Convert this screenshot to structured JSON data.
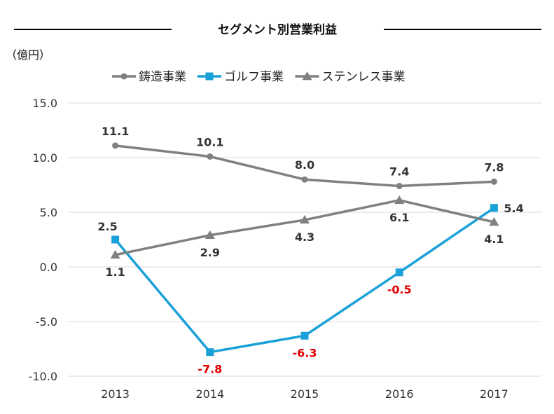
{
  "chart_data": {
    "type": "line",
    "title": "セグメント別営業利益",
    "unit_label": "（億円）",
    "xlabel": "",
    "ylabel": "",
    "ylim": [
      -10,
      15
    ],
    "y_ticks": [
      "15.0",
      "10.0",
      "5.0",
      "0.0",
      "-5.0",
      "-10.0"
    ],
    "y_tick_values": [
      15,
      10,
      5,
      0,
      -5,
      -10
    ],
    "categories": [
      "2013",
      "2014",
      "2015",
      "2016",
      "2017"
    ],
    "grid": true,
    "legend_position": "top",
    "series": [
      {
        "name": "鋳造事業",
        "marker": "circle",
        "color": "#808080",
        "values": [
          11.1,
          10.1,
          8.0,
          7.4,
          7.8
        ],
        "labels": [
          "11.1",
          "10.1",
          "8.0",
          "7.4",
          "7.8"
        ],
        "label_placement": [
          "above",
          "above",
          "above",
          "above",
          "above"
        ],
        "label_colors": [
          "#333333",
          "#333333",
          "#333333",
          "#333333",
          "#333333"
        ]
      },
      {
        "name": "ゴルフ事業",
        "marker": "square",
        "color": "#1AA0D8",
        "values": [
          2.5,
          -7.8,
          -6.3,
          -0.5,
          5.4
        ],
        "labels": [
          "2.5",
          "-7.8",
          "-6.3",
          "-0.5",
          "5.4"
        ],
        "label_placement": [
          "above-left",
          "below",
          "below",
          "below",
          "right"
        ],
        "label_colors": [
          "#333333",
          "#E00000",
          "#E00000",
          "#E00000",
          "#333333"
        ]
      },
      {
        "name": "ステンレス事業",
        "marker": "triangle",
        "color": "#808080",
        "values": [
          1.1,
          2.9,
          4.3,
          6.1,
          4.1
        ],
        "labels": [
          "1.1",
          "2.9",
          "4.3",
          "6.1",
          "4.1"
        ],
        "label_placement": [
          "below",
          "below",
          "below",
          "below",
          "below"
        ],
        "label_colors": [
          "#333333",
          "#333333",
          "#333333",
          "#333333",
          "#333333"
        ]
      }
    ]
  }
}
